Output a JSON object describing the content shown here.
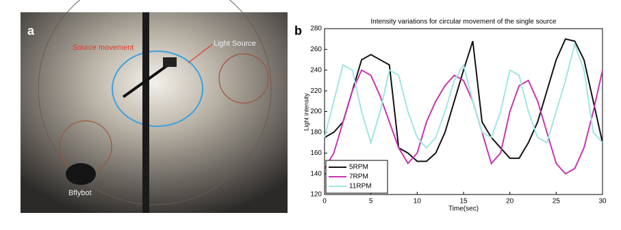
{
  "figure": {
    "panel_a": {
      "label": "a",
      "annotations": [
        "Source movement",
        "Light Source",
        "Bflybot"
      ]
    },
    "panel_b": {
      "label": "b"
    }
  },
  "chart_data": {
    "type": "line",
    "title": "Intensity variations for circular movement of the single source",
    "x_label": "Time(sec)",
    "y_label": "Light intensity",
    "x": [
      0,
      1,
      2,
      3,
      4,
      5,
      6,
      7,
      8,
      9,
      10,
      11,
      12,
      13,
      14,
      15,
      16,
      17,
      18,
      19,
      20,
      21,
      22,
      23,
      24,
      25,
      26,
      27,
      28,
      29,
      30
    ],
    "series": [
      {
        "name": "5RPM",
        "color": "#111111",
        "values": [
          175,
          180,
          190,
          220,
          250,
          255,
          250,
          245,
          165,
          160,
          152,
          152,
          160,
          180,
          210,
          240,
          268,
          190,
          175,
          165,
          155,
          155,
          170,
          190,
          220,
          250,
          270,
          268,
          250,
          210,
          170
        ]
      },
      {
        "name": "7RPM",
        "color": "#c634b3",
        "values": [
          145,
          160,
          190,
          220,
          240,
          235,
          215,
          190,
          165,
          150,
          160,
          190,
          210,
          225,
          235,
          230,
          210,
          180,
          150,
          160,
          200,
          225,
          230,
          210,
          180,
          150,
          140,
          145,
          165,
          200,
          240
        ]
      },
      {
        "name": "11RPM",
        "color": "#9fe6e0",
        "values": [
          175,
          210,
          245,
          240,
          200,
          170,
          200,
          240,
          235,
          200,
          175,
          165,
          175,
          200,
          230,
          245,
          210,
          180,
          175,
          200,
          240,
          235,
          200,
          175,
          170,
          200,
          230,
          265,
          240,
          180,
          170
        ]
      }
    ],
    "xlim": [
      0,
      30
    ],
    "xticks": [
      0,
      5,
      10,
      15,
      20,
      25,
      30
    ],
    "ylim": [
      120,
      280
    ],
    "yticks": [
      120,
      140,
      160,
      180,
      200,
      220,
      240,
      260,
      280
    ],
    "legend": "lower left"
  }
}
